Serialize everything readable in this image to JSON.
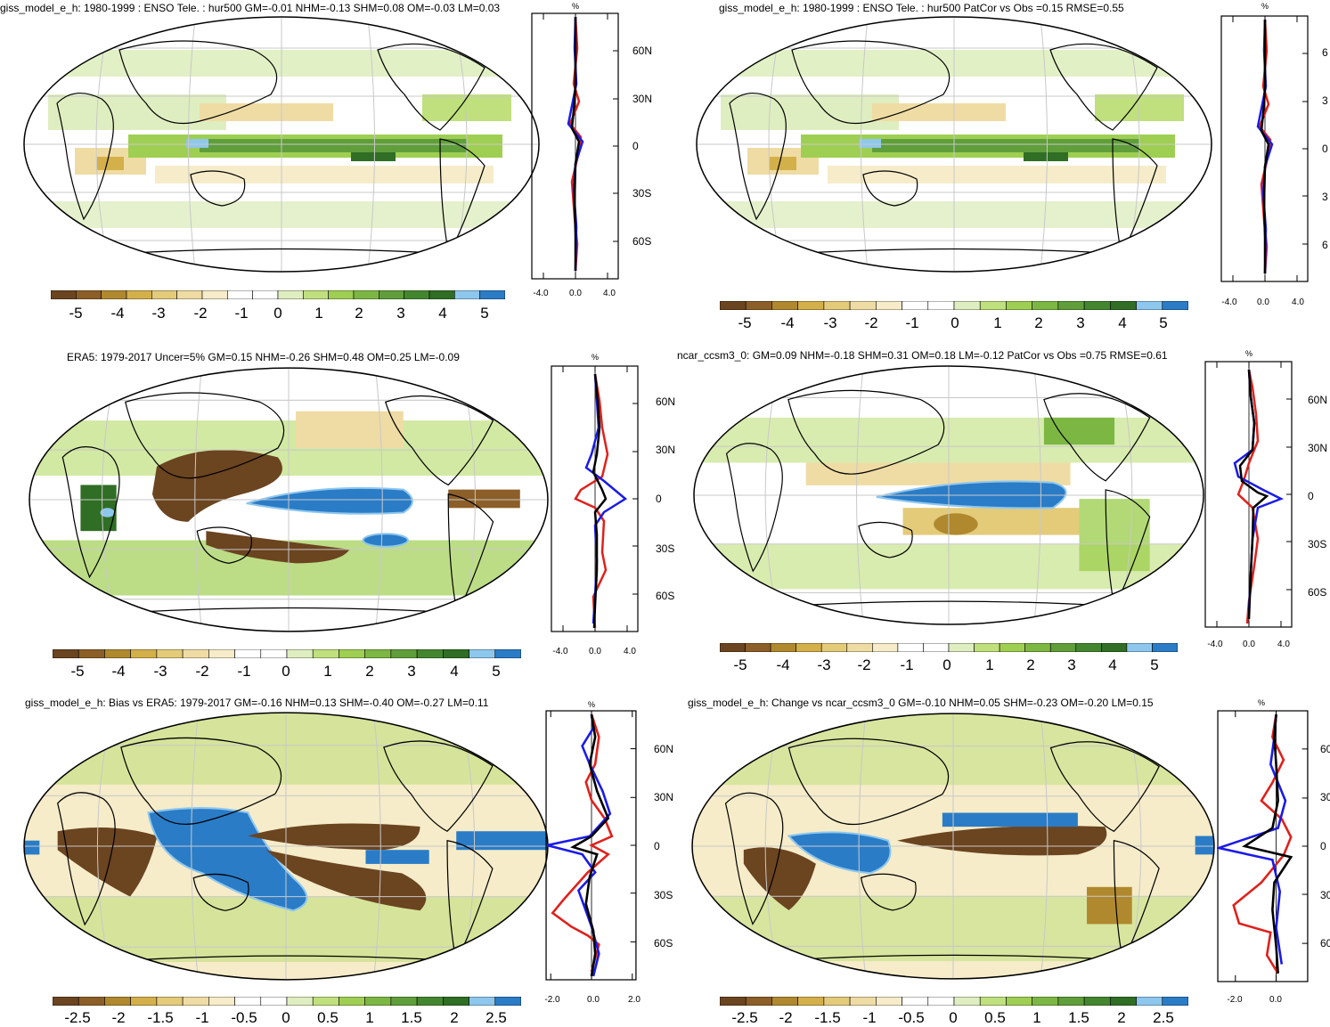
{
  "colorbar_colors": [
    "#6b4420",
    "#8c5e28",
    "#b0892e",
    "#d4b04a",
    "#e3cb7a",
    "#efdca4",
    "#f6ecc9",
    "#ffffff",
    "#ffffff",
    "#dfeec0",
    "#bfe07c",
    "#9fcf52",
    "#7db743",
    "#5f9e3a",
    "#44862f",
    "#2f6e24",
    "#8ec7ee",
    "#2a7cc7"
  ],
  "panels": [
    {
      "title": "giss_model_e_h: 1980-1999 : ENSO Tele. : hur500 GM=-0.01 NHM=-0.13 SHM=0.08 OM=-0.03 LM=0.03",
      "cbar_labels": [
        "-5",
        "-4",
        "-3",
        "-2",
        "-1",
        "0",
        "1",
        "2",
        "3",
        "4",
        "5"
      ],
      "zonal_unit": "%",
      "lat_labels": [
        "60N",
        "30N",
        "0",
        "30S",
        "60S"
      ],
      "x_labels": [
        "-4.0",
        "0.0",
        "4.0"
      ]
    },
    {
      "title": "giss_model_e_h: 1980-1999 : ENSO Tele. : hur500 PatCor vs Obs =0.15 RMSE=0.55",
      "cbar_labels": [
        "-5",
        "-4",
        "-3",
        "-2",
        "-1",
        "0",
        "1",
        "2",
        "3",
        "4",
        "5"
      ],
      "zonal_unit": "%",
      "lat_labels": [
        "6",
        "3",
        "0",
        "3",
        "6"
      ],
      "x_labels": [
        "-4.0",
        "0.0",
        "4.0"
      ]
    },
    {
      "title": "ERA5: 1979-2017 Uncer=5% GM=0.15 NHM=-0.26 SHM=0.48 OM=0.25 LM=-0.09",
      "cbar_labels": [
        "-5",
        "-4",
        "-3",
        "-2",
        "-1",
        "0",
        "1",
        "2",
        "3",
        "4",
        "5"
      ],
      "zonal_unit": "%",
      "lat_labels": [
        "60N",
        "30N",
        "0",
        "30S",
        "60S"
      ],
      "x_labels": [
        "-4.0",
        "0.0",
        "4.0"
      ]
    },
    {
      "title": "ncar_ccsm3_0: GM=0.09 NHM=-0.18 SHM=0.31 OM=0.18 LM=-0.12 PatCor vs Obs =0.75 RMSE=0.61",
      "cbar_labels": [
        "-5",
        "-4",
        "-3",
        "-2",
        "-1",
        "0",
        "1",
        "2",
        "3",
        "4",
        "5"
      ],
      "zonal_unit": "%",
      "lat_labels": [
        "60N",
        "30N",
        "0",
        "30S",
        "60S"
      ],
      "x_labels": [
        "-4.0",
        "0.0",
        "4.0"
      ]
    },
    {
      "title": "giss_model_e_h: Bias vs ERA5: 1979-2017 GM=-0.16 NHM=0.13 SHM=-0.40 OM=-0.27 LM=0.11",
      "cbar_labels": [
        "-2.5",
        "-2",
        "-1.5",
        "-1",
        "-0.5",
        "0",
        "0.5",
        "1",
        "1.5",
        "2",
        "2.5"
      ],
      "zonal_unit": "%",
      "lat_labels": [
        "60N",
        "30N",
        "0",
        "30S",
        "60S"
      ],
      "x_labels": [
        "-2.0",
        "0.0",
        "2.0"
      ]
    },
    {
      "title": "giss_model_e_h: Change vs ncar_ccsm3_0 GM=-0.10 NHM=0.05 SHM=-0.23 OM=-0.20 LM=0.15",
      "cbar_labels": [
        "-2.5",
        "-2",
        "-1.5",
        "-1",
        "-0.5",
        "0",
        "0.5",
        "1",
        "1.5",
        "2",
        "2.5"
      ],
      "zonal_unit": "%",
      "lat_labels": [
        "60",
        "30",
        "0",
        "30",
        "60"
      ],
      "x_labels": [
        "-2.0",
        "0.0"
      ]
    }
  ]
}
